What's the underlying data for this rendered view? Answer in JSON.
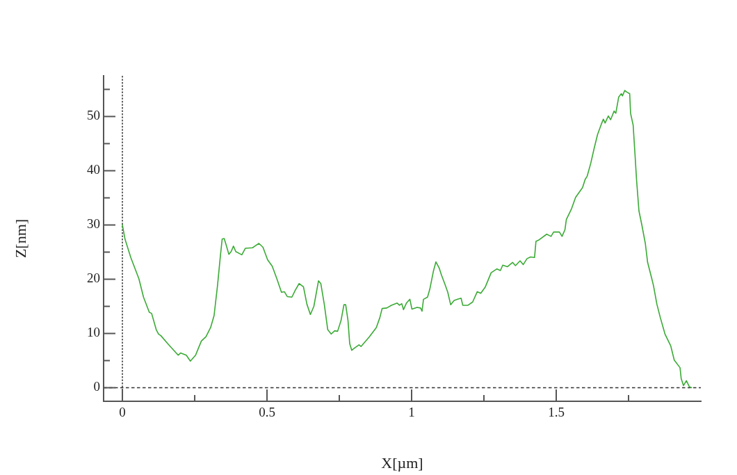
{
  "chart_data": {
    "type": "line",
    "xlabel": "X[µm]",
    "ylabel": "Z[nm]",
    "x": [
      0,
      0.009,
      0.029,
      0.057,
      0.073,
      0.093,
      0.101,
      0.117,
      0.125,
      0.133,
      0.157,
      0.193,
      0.201,
      0.221,
      0.235,
      0.253,
      0.273,
      0.289,
      0.305,
      0.317,
      0.329,
      0.339,
      0.345,
      0.352,
      0.36,
      0.368,
      0.376,
      0.384,
      0.392,
      0.413,
      0.425,
      0.45,
      0.458,
      0.472,
      0.486,
      0.502,
      0.518,
      0.534,
      0.55,
      0.56,
      0.57,
      0.586,
      0.598,
      0.611,
      0.626,
      0.638,
      0.65,
      0.662,
      0.678,
      0.686,
      0.698,
      0.71,
      0.722,
      0.734,
      0.744,
      0.756,
      0.766,
      0.772,
      0.78,
      0.786,
      0.793,
      0.802,
      0.818,
      0.825,
      0.838,
      0.854,
      0.878,
      0.89,
      0.898,
      0.914,
      0.93,
      0.95,
      0.958,
      0.966,
      0.972,
      0.982,
      0.994,
      1.001,
      1.019,
      1.031,
      1.036,
      1.041,
      1.055,
      1.063,
      1.075,
      1.084,
      1.095,
      1.103,
      1.115,
      1.125,
      1.135,
      1.147,
      1.159,
      1.171,
      1.177,
      1.195,
      1.211,
      1.227,
      1.239,
      1.255,
      1.275,
      1.295,
      1.307,
      1.315,
      1.331,
      1.349,
      1.359,
      1.375,
      1.386,
      1.399,
      1.411,
      1.425,
      1.43,
      1.439,
      1.467,
      1.482,
      1.491,
      1.511,
      1.52,
      1.53,
      1.535,
      1.553,
      1.567,
      1.579,
      1.591,
      1.6,
      1.607,
      1.619,
      1.631,
      1.643,
      1.656,
      1.663,
      1.669,
      1.68,
      1.688,
      1.7,
      1.706,
      1.716,
      1.725,
      1.729,
      1.737,
      1.744,
      1.754,
      1.757,
      1.766,
      1.772,
      1.778,
      1.786,
      1.796,
      1.808,
      1.816,
      1.828,
      1.836,
      1.848,
      1.86,
      1.876,
      1.896,
      1.908,
      1.928,
      1.932,
      1.94,
      1.95,
      1.96,
      1.968
    ],
    "series": [
      {
        "color": "#3aaa35",
        "values": [
          30.0,
          27.4,
          24.0,
          20.1,
          16.7,
          13.9,
          13.7,
          10.7,
          9.9,
          9.6,
          8.1,
          6.0,
          6.4,
          6.0,
          4.9,
          6.0,
          8.6,
          9.4,
          11.1,
          13.3,
          18.9,
          24.4,
          27.4,
          27.5,
          26.1,
          24.6,
          25.1,
          26.1,
          25.1,
          24.5,
          25.7,
          25.8,
          26.1,
          26.6,
          25.9,
          23.6,
          22.4,
          20.1,
          17.6,
          17.7,
          16.8,
          16.7,
          18.0,
          19.2,
          18.6,
          15.4,
          13.5,
          15.0,
          19.7,
          19.2,
          15.4,
          10.7,
          9.9,
          10.5,
          10.4,
          12.4,
          15.3,
          15.3,
          12.4,
          8.1,
          6.9,
          7.3,
          7.9,
          7.6,
          8.4,
          9.4,
          11.1,
          12.9,
          14.6,
          14.7,
          15.2,
          15.6,
          15.2,
          15.5,
          14.4,
          15.6,
          16.3,
          14.5,
          14.8,
          14.7,
          14.1,
          16.3,
          16.7,
          18.2,
          21.4,
          23.2,
          22.1,
          20.8,
          19.1,
          17.6,
          15.3,
          16.1,
          16.3,
          16.5,
          15.2,
          15.2,
          15.8,
          17.7,
          17.4,
          18.6,
          21.2,
          21.9,
          21.6,
          22.6,
          22.3,
          23.1,
          22.5,
          23.4,
          22.7,
          23.8,
          24.1,
          24.0,
          27.0,
          27.2,
          28.3,
          27.9,
          28.7,
          28.7,
          27.9,
          29.1,
          31.0,
          33.0,
          35.1,
          36.0,
          36.9,
          38.4,
          39.0,
          41.3,
          44.1,
          46.7,
          48.6,
          49.5,
          48.8,
          50.1,
          49.4,
          51.0,
          50.6,
          53.6,
          54.2,
          53.8,
          54.8,
          54.5,
          54.2,
          50.6,
          48.4,
          43.3,
          38.1,
          32.6,
          30.0,
          26.6,
          23.1,
          20.6,
          18.9,
          15.4,
          12.9,
          9.9,
          7.7,
          5.1,
          3.7,
          1.7,
          0.4,
          1.3,
          0.2,
          0.0
        ]
      }
    ],
    "xlim": [
      -0.065,
      2.0
    ],
    "ylim": [
      -2.5,
      57.5
    ],
    "xticks": [
      0,
      {
        "value": 0.25,
        "label": null
      },
      0.5,
      {
        "value": 0.75,
        "label": null
      },
      1,
      {
        "value": 1.25,
        "label": null
      },
      1.5,
      {
        "value": 1.75,
        "label": null
      }
    ],
    "yticks": [
      0,
      {
        "value": 5,
        "label": null
      },
      10,
      {
        "value": 15,
        "label": null
      },
      20,
      {
        "value": 25,
        "label": null
      },
      30,
      {
        "value": 35,
        "label": null
      },
      40,
      {
        "value": 45,
        "label": null
      },
      50,
      {
        "value": 55,
        "label": null
      }
    ],
    "ref_lines": [
      {
        "axis": "x",
        "value": 0,
        "color": "#333333",
        "line_style": "dotted"
      },
      {
        "axis": "y",
        "value": 0,
        "color": "#333333",
        "line_style": "dashed"
      }
    ],
    "marker": "none",
    "line_style": "solid"
  }
}
